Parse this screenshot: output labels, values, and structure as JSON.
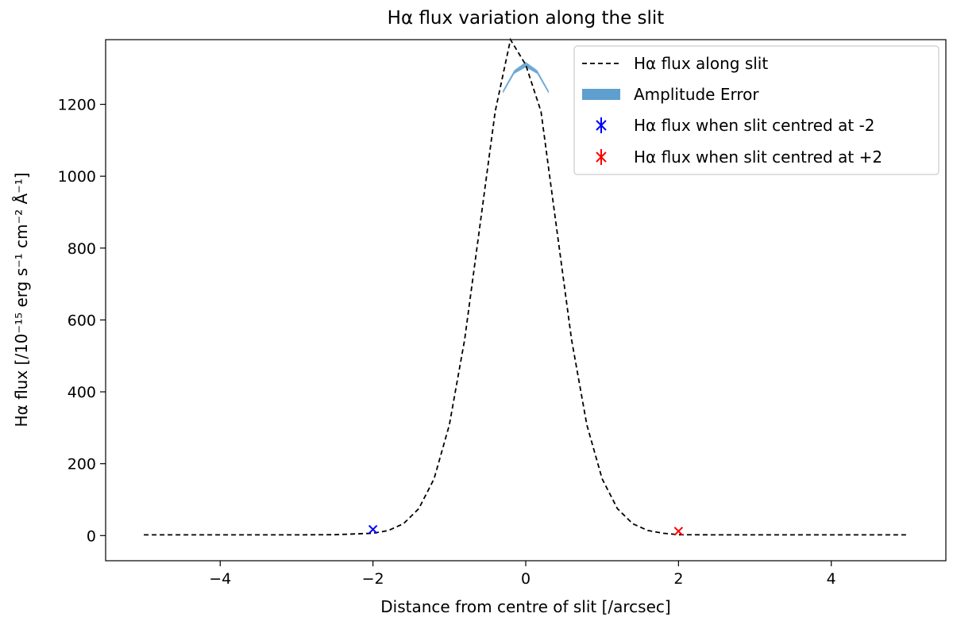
{
  "chart_data": {
    "type": "line",
    "title": "Hα flux variation along the slit",
    "xlabel": "Distance from centre of slit [/arcsec]",
    "ylabel": "Hα flux [/10⁻¹⁵ erg s⁻¹ cm⁻² Å⁻¹]",
    "xlim": [
      -5.5,
      5.5
    ],
    "ylim": [
      -70,
      1380
    ],
    "xticks": [
      -4,
      -2,
      0,
      2,
      4
    ],
    "yticks": [
      0,
      200,
      400,
      600,
      800,
      1000,
      1200
    ],
    "xtick_labels": [
      "−4",
      "−2",
      "0",
      "2",
      "4"
    ],
    "ytick_labels": [
      "0",
      "200",
      "400",
      "600",
      "800",
      "1000",
      "1200"
    ],
    "grid": false,
    "legend_position": "top-right",
    "series": [
      {
        "name": "Hα flux along slit",
        "kind": "line",
        "style": "dashed",
        "color": "#000000",
        "x": [
          -5.0,
          -4.5,
          -4.0,
          -3.5,
          -3.0,
          -2.5,
          -2.0,
          -1.8,
          -1.6,
          -1.4,
          -1.2,
          -1.0,
          -0.8,
          -0.6,
          -0.4,
          -0.2,
          0.0,
          0.2,
          0.4,
          0.6,
          0.8,
          1.0,
          1.2,
          1.4,
          1.6,
          1.8,
          2.0,
          2.5,
          3.0,
          3.5,
          4.0,
          4.5,
          5.0
        ],
        "y": [
          2,
          2,
          2,
          2,
          2,
          2.4,
          6.5,
          14,
          33,
          75,
          158,
          308,
          545,
          862,
          1180,
          1380,
          1310,
          1180,
          862,
          545,
          308,
          158,
          75,
          33,
          14,
          6.5,
          2.4,
          2,
          2,
          2,
          2,
          2,
          2
        ]
      },
      {
        "name": "Amplitude Error",
        "kind": "band",
        "color": "#5f9fcf",
        "x": [
          -0.3,
          -0.15,
          0.0,
          0.15,
          0.3
        ],
        "y_low": [
          1230,
          1285,
          1303,
          1285,
          1230
        ],
        "y_high": [
          1238,
          1295,
          1318,
          1295,
          1238
        ]
      },
      {
        "name": "Hα flux when slit centred at -2",
        "kind": "point",
        "marker": "x",
        "color": "#0000ff",
        "x": [
          -2.0
        ],
        "y": [
          17
        ]
      },
      {
        "name": "Hα flux when slit centred at +2",
        "kind": "point",
        "marker": "x",
        "color": "#ff0000",
        "x": [
          2.0
        ],
        "y": [
          12
        ]
      }
    ]
  }
}
